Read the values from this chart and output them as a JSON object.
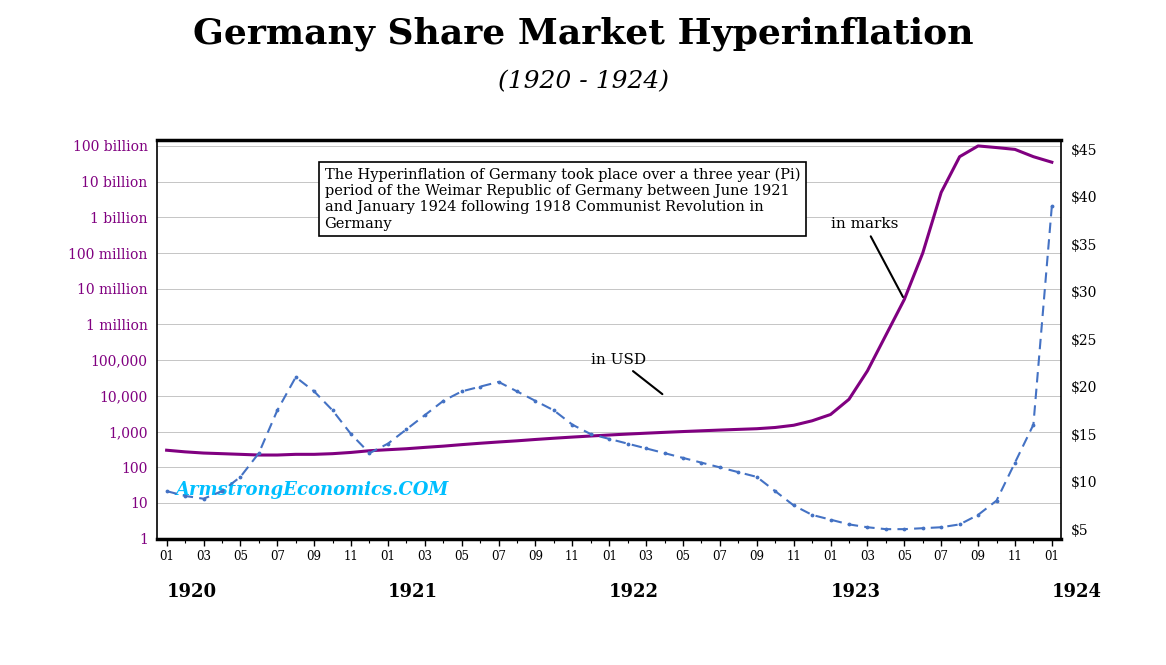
{
  "title": "Germany Share Market Hyperinflation",
  "subtitle": "(1920 - 1924)",
  "annotation_text": "The Hyperinflation of Germany took place over a three year (Pi)\nperiod of the Weimar Republic of Germany between June 1921\nand January 1924 following 1918 Communist Revolution in\nGermany",
  "watermark": "ArmstrongEconomics.COM",
  "label_marks": "in marks",
  "label_usd": "in USD",
  "marks_line_color": "#800080",
  "usd_line_color": "#4472C4",
  "left_axis_color": "#800080",
  "watermark_color": "#00BFFF",
  "background_color": "#FFFFFF",
  "left_yticks_labels": [
    "1",
    "10",
    "100",
    "1,000",
    "10,000",
    "100,000",
    "1 million",
    "10 million",
    "100 million",
    "1 billion",
    "10 billion",
    "100 billion"
  ],
  "left_yticks_values": [
    1,
    10,
    100,
    1000,
    10000,
    100000,
    1000000,
    10000000,
    100000000,
    1000000000,
    10000000000,
    100000000000
  ],
  "right_yticks": [
    5,
    10,
    15,
    20,
    25,
    30,
    35,
    40,
    45
  ],
  "right_ytick_labels": [
    "$5",
    "$10",
    "$15",
    "$20",
    "$25",
    "$30",
    "$35",
    "$40",
    "$45"
  ],
  "ylim_right": [
    4,
    46
  ],
  "year_labels": [
    "1920",
    "1921",
    "1922",
    "1923",
    "1924"
  ],
  "year_positions": [
    0,
    12,
    24,
    36,
    48
  ],
  "marks_y": [
    300,
    270,
    250,
    240,
    230,
    220,
    220,
    230,
    230,
    240,
    260,
    290,
    310,
    330,
    360,
    390,
    430,
    470,
    510,
    550,
    600,
    650,
    700,
    750,
    800,
    850,
    900,
    950,
    1000,
    1050,
    1100,
    1150,
    1200,
    1300,
    1500,
    2000,
    3000,
    8000,
    50000,
    500000,
    5000000,
    100000000,
    5000000000,
    50000000000,
    100000000000,
    90000000000,
    80000000000,
    50000000000,
    35000000000
  ],
  "usd_y": [
    9.0,
    8.5,
    8.2,
    9.0,
    10.5,
    13.0,
    17.5,
    21.0,
    19.5,
    17.5,
    15.0,
    13.0,
    14.0,
    15.5,
    17.0,
    18.5,
    19.5,
    20.0,
    20.5,
    19.5,
    18.5,
    17.5,
    16.0,
    15.0,
    14.5,
    14.0,
    13.5,
    13.0,
    12.5,
    12.0,
    11.5,
    11.0,
    10.5,
    9.0,
    7.5,
    6.5,
    6.0,
    5.5,
    5.2,
    5.0,
    5.0,
    5.1,
    5.2,
    5.5,
    6.5,
    8.0,
    12.0,
    16.0,
    39.0
  ]
}
